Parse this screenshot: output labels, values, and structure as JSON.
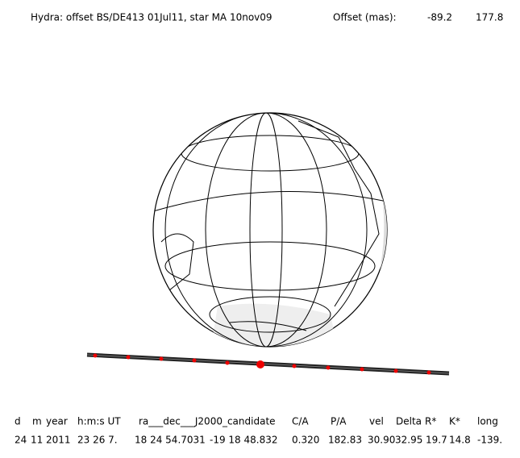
{
  "header": {
    "title": "Hydra: offset BS/DE413 01Jul11, star MA 10nov09",
    "offset_label": "Offset (mas):",
    "offset_x": "-89.2",
    "offset_y": "177.8"
  },
  "table": {
    "headers": [
      "d",
      "m",
      "year",
      "h:m:s UT",
      "ra___dec___J2000_candidate",
      "C/A",
      "P/A",
      "vel",
      "Delta",
      "R*",
      "K*",
      "long"
    ],
    "rows": [
      [
        "24",
        "11",
        "2011",
        "23 26  7.",
        "18 24 54.7031",
        "-19 18  48.832",
        "0.320",
        "182.83",
        "30.90",
        "32.95",
        "19.7",
        "14.8",
        "-139."
      ]
    ]
  }
}
